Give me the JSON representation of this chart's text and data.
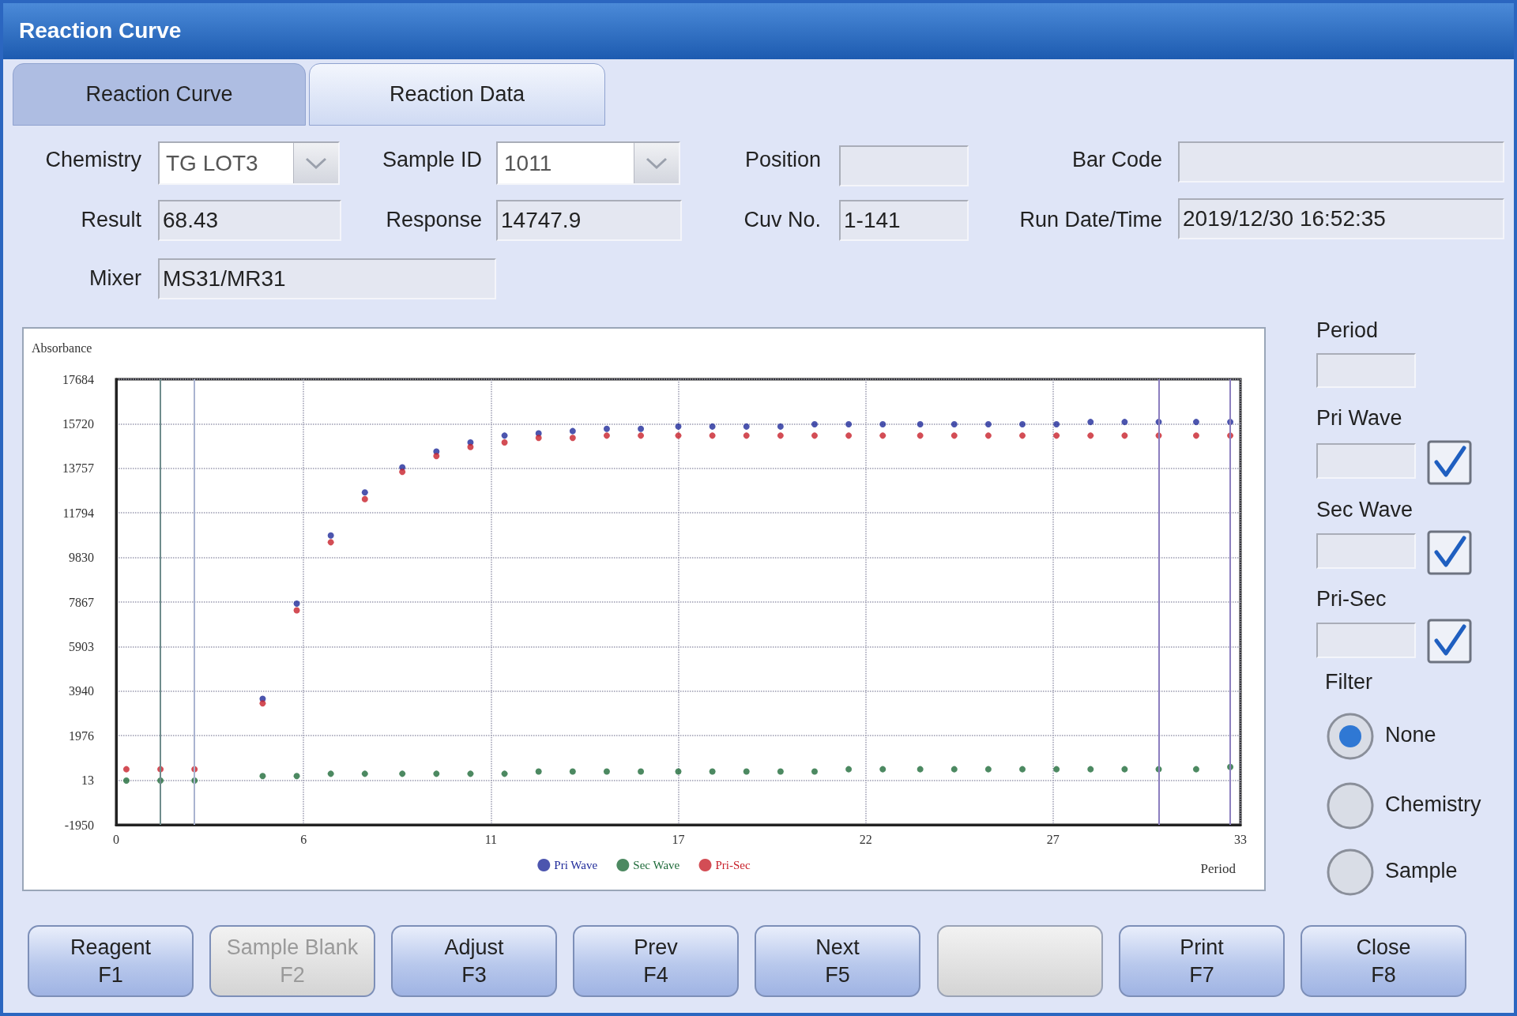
{
  "chart_data": [
    {
      "type": "other",
      "title": "Reaction Curve",
      "annotations": [
        "Reaction Curve",
        "Reaction Data",
        "Chemistry",
        "TG LOT3",
        "Sample ID",
        "1011",
        "Position",
        "Bar Code",
        "Result",
        "68.43",
        "Response",
        "14747.9",
        "Cuv No.",
        "1-141",
        "Run Date/Time",
        "2019/12/30 16:52:35",
        "Mixer",
        "MS31/MR31",
        "Period",
        "Pri Wave",
        "Sec Wave",
        "Pri-Sec",
        "Filter",
        "None",
        "Chemistry",
        "Sample",
        "Reagent\nF1",
        "Sample Blank\nF2",
        "Adjust\nF3",
        "Prev\nF4",
        "Next\nF5",
        "Print\nF7",
        "Close\nF8"
      ]
    },
    {
      "type": "scatter",
      "xlabel": "Period",
      "ylabel": "Absorbance",
      "xlim": [
        0,
        33
      ],
      "xticks": [
        0,
        {
          "value": 5.5,
          "label": "6"
        },
        11,
        {
          "value": 16.5,
          "label": "17"
        },
        22,
        {
          "value": 27.5,
          "label": "27"
        },
        33
      ],
      "ylim": [
        -1950,
        17684
      ],
      "yticks": [
        -1950,
        13,
        1976,
        3940,
        5903,
        7867,
        9830,
        11794,
        13757,
        15720,
        17684
      ],
      "grid": true,
      "legend": "bottom",
      "marker": "circle",
      "x": [
        0.3,
        1.3,
        2.3,
        4.3,
        5.3,
        6.3,
        7.3,
        8.4,
        9.4,
        10.4,
        11.4,
        12.4,
        13.4,
        14.4,
        15.4,
        16.5,
        17.5,
        18.5,
        19.5,
        20.5,
        21.5,
        22.5,
        23.6,
        24.6,
        25.6,
        26.6,
        27.6,
        28.6,
        29.6,
        30.6,
        31.7,
        32.7
      ],
      "ref_lines": [
        {
          "axis": "x",
          "value": 1.3,
          "color": "#6f8c8c"
        },
        {
          "axis": "x",
          "value": 2.3,
          "color": "#a9b3d0"
        },
        {
          "axis": "x",
          "value": 30.6,
          "color": "#8c7fbf"
        },
        {
          "axis": "x",
          "value": 32.7,
          "color": "#8c7fbf"
        }
      ],
      "series": [
        {
          "name": "Pri Wave",
          "color": "#1f2a9a",
          "values": [
            null,
            null,
            null,
            3600,
            7800,
            10800,
            12700,
            13800,
            14500,
            14900,
            15200,
            15300,
            15400,
            15500,
            15500,
            15600,
            15600,
            15600,
            15600,
            15700,
            15700,
            15700,
            15700,
            15700,
            15700,
            15700,
            15700,
            15800,
            15800,
            15800,
            15800,
            15800
          ]
        },
        {
          "name": "Sec Wave",
          "color": "#1f6b3a",
          "values": [
            0,
            0,
            0,
            200,
            200,
            300,
            300,
            300,
            300,
            300,
            300,
            400,
            400,
            400,
            400,
            400,
            400,
            400,
            400,
            400,
            500,
            500,
            500,
            500,
            500,
            500,
            500,
            500,
            500,
            500,
            500,
            600
          ]
        },
        {
          "name": "Pri-Sec",
          "color": "#c8202a",
          "values": [
            500,
            500,
            500,
            3400,
            7500,
            10500,
            12400,
            13600,
            14300,
            14700,
            14900,
            15100,
            15100,
            15200,
            15200,
            15200,
            15200,
            15200,
            15200,
            15200,
            15200,
            15200,
            15200,
            15200,
            15200,
            15200,
            15200,
            15200,
            15200,
            15200,
            15200,
            15200
          ]
        }
      ]
    }
  ]
}
